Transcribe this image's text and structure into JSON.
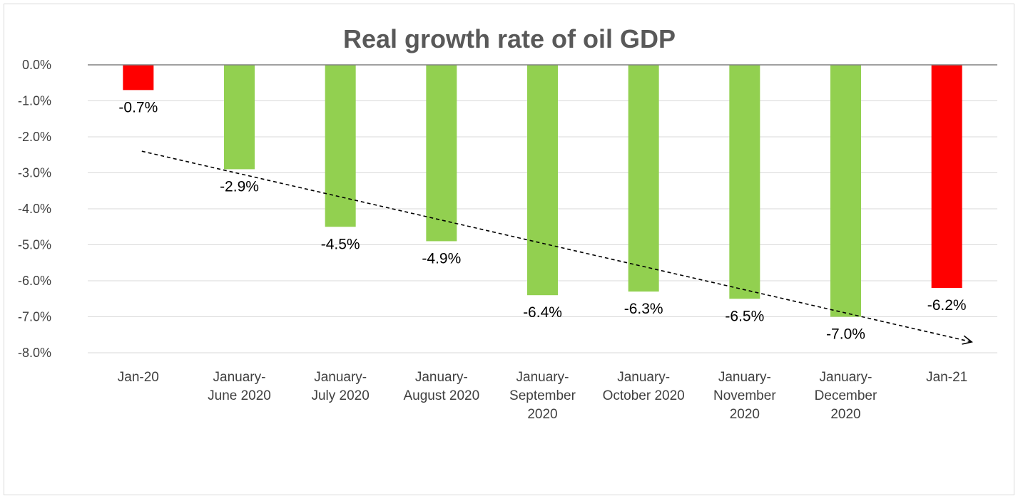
{
  "chart_data": {
    "type": "bar",
    "title": "Real growth rate of oil GDP",
    "categories": [
      "Jan-20",
      "January-June 2020",
      "January-July 2020",
      "January-August 2020",
      "January-September 2020",
      "January-October 2020",
      "January-November 2020",
      "January-December 2020",
      "Jan-21"
    ],
    "category_lines": [
      [
        "Jan-20"
      ],
      [
        "January-",
        "June 2020"
      ],
      [
        "January-",
        "July 2020"
      ],
      [
        "January-",
        "August 2020"
      ],
      [
        "January-",
        "September",
        "2020"
      ],
      [
        "January-",
        "October 2020"
      ],
      [
        "January-",
        "November",
        "2020"
      ],
      [
        "January-",
        "December",
        "2020"
      ],
      [
        "Jan-21"
      ]
    ],
    "values": [
      -0.7,
      -2.9,
      -4.5,
      -4.9,
      -6.4,
      -6.3,
      -6.5,
      -7.0,
      -6.2
    ],
    "data_labels": [
      "-0.7%",
      "-2.9%",
      "-4.5%",
      "-4.9%",
      "-6.4%",
      "-6.3%",
      "-6.5%",
      "-7.0%",
      "-6.2%"
    ],
    "bar_colors": [
      "#ff0000",
      "#92d050",
      "#92d050",
      "#92d050",
      "#92d050",
      "#92d050",
      "#92d050",
      "#92d050",
      "#ff0000"
    ],
    "ylim": [
      -8.0,
      0.0
    ],
    "y_ticks": [
      0,
      -1,
      -2,
      -3,
      -4,
      -5,
      -6,
      -7,
      -8
    ],
    "y_tick_labels": [
      "0.0%",
      "-1.0%",
      "-2.0%",
      "-3.0%",
      "-4.0%",
      "-5.0%",
      "-6.0%",
      "-7.0%",
      "-8.0%"
    ],
    "xlabel": "",
    "ylabel": "",
    "grid": true,
    "legend": "none",
    "trend_line": {
      "style": "dashed-arrow",
      "color": "#000000",
      "from": {
        "category": "Jan-20",
        "value": -2.4
      },
      "to": {
        "category": "Jan-21",
        "value": -7.7
      }
    }
  }
}
